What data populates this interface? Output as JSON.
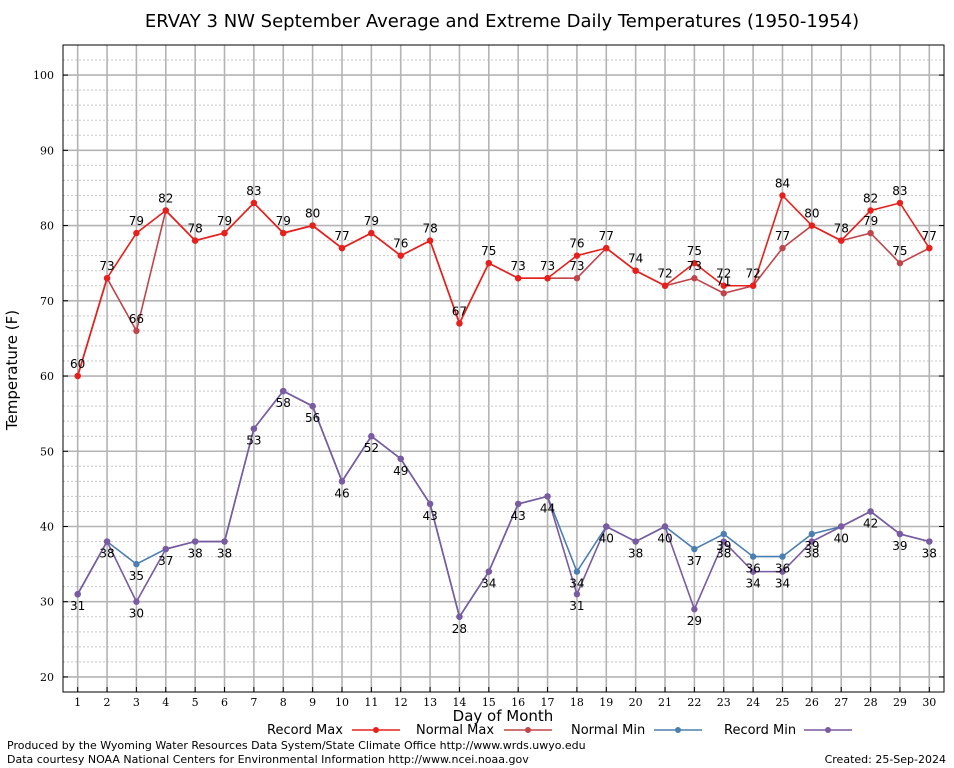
{
  "chart_data": {
    "type": "line",
    "title": "ERVAY 3 NW September Average and Extreme Daily Temperatures (1950-1954)",
    "xlabel": "Day of Month",
    "ylabel": "Temperature (F)",
    "x": [
      1,
      2,
      3,
      4,
      5,
      6,
      7,
      8,
      9,
      10,
      11,
      12,
      13,
      14,
      15,
      16,
      17,
      18,
      19,
      20,
      21,
      22,
      23,
      24,
      25,
      26,
      27,
      28,
      29,
      30
    ],
    "xlim": [
      0.5,
      30.5
    ],
    "ylim": [
      18,
      104
    ],
    "yticks": [
      20,
      30,
      40,
      50,
      60,
      70,
      80,
      90,
      100
    ],
    "grid": true,
    "series": [
      {
        "name": "Record Max",
        "color": "#e8201c",
        "values": [
          60,
          73,
          79,
          82,
          78,
          79,
          83,
          79,
          80,
          77,
          79,
          76,
          78,
          67,
          75,
          73,
          73,
          76,
          77,
          74,
          72,
          75,
          72,
          72,
          84,
          80,
          78,
          82,
          83,
          77
        ]
      },
      {
        "name": "Normal Max",
        "color": "#c0454a",
        "values": [
          60,
          73,
          66,
          82,
          78,
          79,
          83,
          79,
          80,
          77,
          79,
          76,
          78,
          67,
          75,
          73,
          73,
          73,
          77,
          74,
          72,
          73,
          71,
          72,
          77,
          80,
          78,
          79,
          75,
          77
        ]
      },
      {
        "name": "Normal Min",
        "color": "#4a7fb0",
        "values": [
          31,
          38,
          35,
          37,
          38,
          38,
          53,
          58,
          56,
          46,
          52,
          49,
          43,
          28,
          34,
          43,
          44,
          34,
          40,
          38,
          40,
          37,
          39,
          36,
          36,
          39,
          40,
          42,
          39,
          38
        ]
      },
      {
        "name": "Record Min",
        "color": "#7a5aa0",
        "values": [
          31,
          38,
          30,
          37,
          38,
          38,
          53,
          58,
          56,
          46,
          52,
          49,
          43,
          28,
          34,
          43,
          44,
          31,
          40,
          38,
          40,
          29,
          38,
          34,
          34,
          38,
          40,
          42,
          39,
          38
        ]
      }
    ]
  },
  "legend": {
    "record_max": "Record Max",
    "normal_max": "Normal Max",
    "normal_min": "Normal Min",
    "record_min": "Record Min"
  },
  "footer": {
    "produced_by": "Produced by the Wyoming Water Resources Data System/State Climate Office http://www.wrds.uwyo.edu",
    "courtesy": "Data courtesy NOAA National Centers for Environmental Information http://www.ncei.noaa.gov",
    "created": "Created:  25-Sep-2024"
  }
}
